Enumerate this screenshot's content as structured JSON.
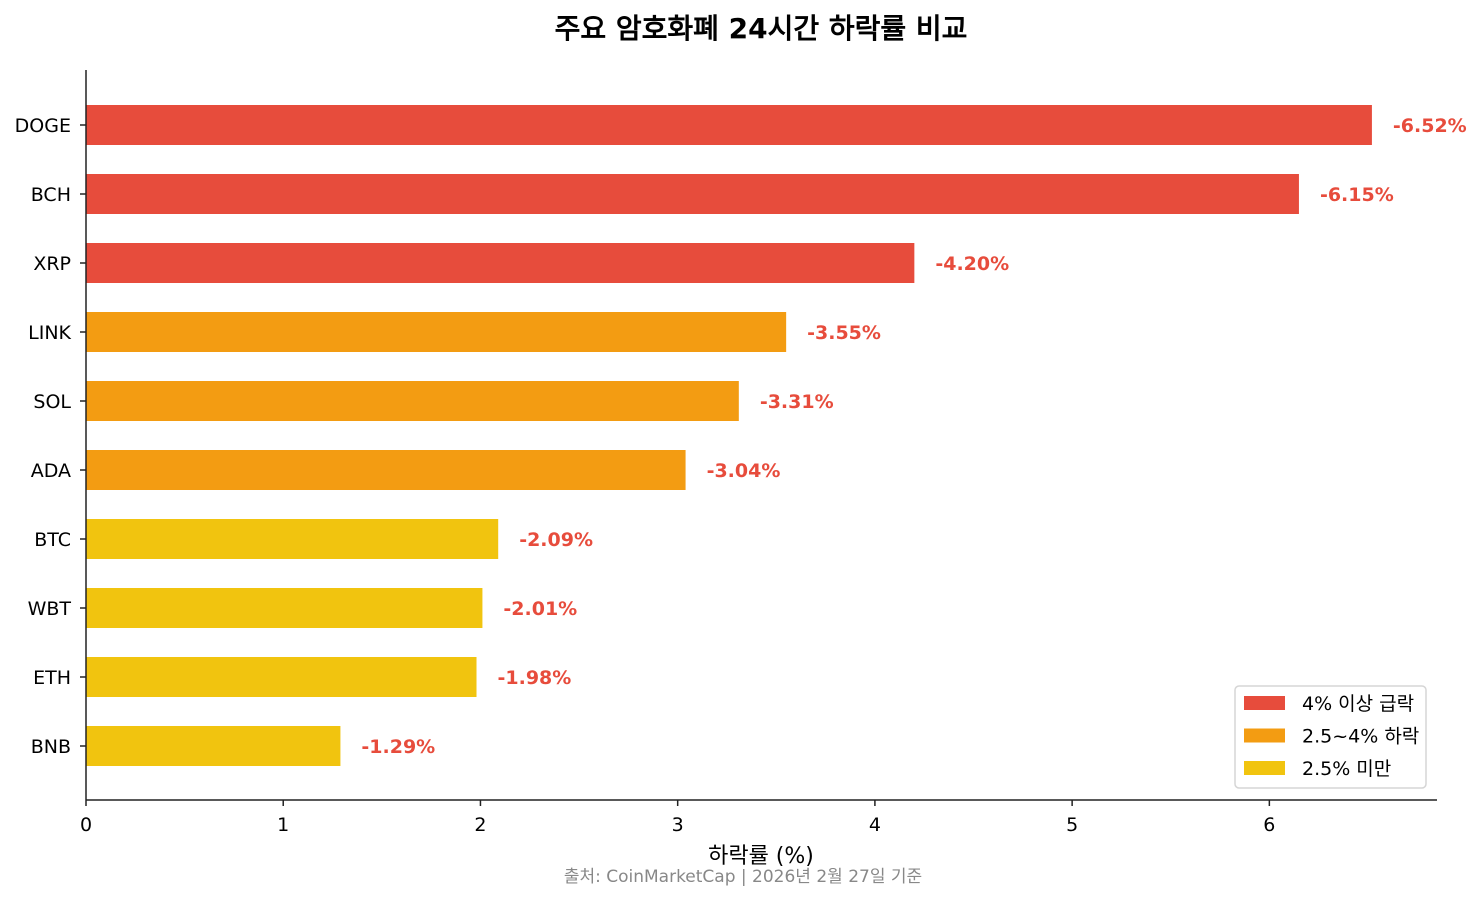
{
  "chart_data": {
    "type": "bar",
    "orientation": "horizontal",
    "title": "주요 암호화폐 24시간 하락률 비교",
    "xlabel": "하락률 (%)",
    "ylabel": "",
    "source": "출처: CoinMarketCap | 2026년 2월 27일 기준",
    "categories": [
      "DOGE",
      "BCH",
      "XRP",
      "LINK",
      "SOL",
      "ADA",
      "BTC",
      "WBT",
      "ETH",
      "BNB"
    ],
    "values": [
      6.52,
      6.15,
      4.2,
      3.55,
      3.31,
      3.04,
      2.09,
      2.01,
      1.98,
      1.29
    ],
    "data_labels": [
      "-6.52%",
      "-6.15%",
      "-4.20%",
      "-3.55%",
      "-3.31%",
      "-3.04%",
      "-2.09%",
      "-2.01%",
      "-1.98%",
      "-1.29%"
    ],
    "bar_groups": [
      0,
      0,
      0,
      1,
      1,
      1,
      2,
      2,
      2,
      2
    ],
    "xlim": [
      0,
      6.85
    ],
    "xticks": [
      0,
      1,
      2,
      3,
      4,
      5,
      6
    ],
    "grid": false,
    "legend_position": "bottom-right",
    "legend": [
      {
        "label": "4% 이상 급락",
        "color": "#e74c3c"
      },
      {
        "label": "2.5~4% 하락",
        "color": "#f39c12"
      },
      {
        "label": "2.5% 미만",
        "color": "#f1c40f"
      }
    ],
    "data_label_color": "#e74c3c"
  }
}
